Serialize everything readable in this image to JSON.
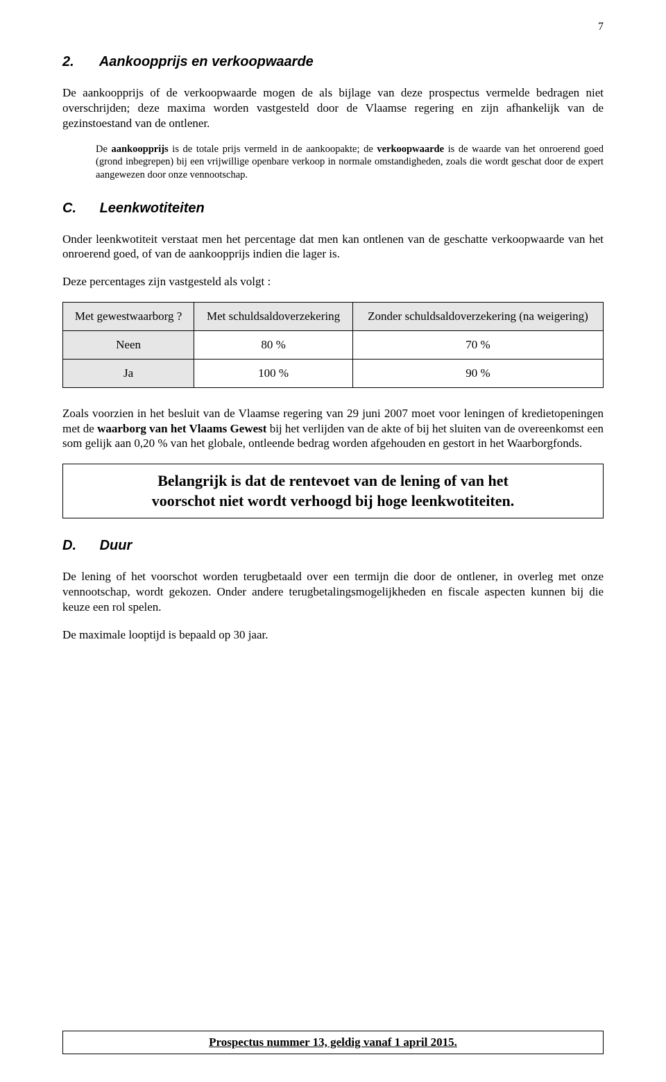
{
  "page_number": "7",
  "section2": {
    "num": "2.",
    "title": "Aankoopprijs en verkoopwaarde",
    "para1": "De aankoopprijs of de verkoopwaarde mogen de als bijlage van deze prospectus vermelde bedragen niet overschrijden; deze maxima worden vastgesteld door de Vlaamse regering en zijn afhankelijk van de gezinstoestand van de ontlener.",
    "note": "De aankoopprijs is de totale prijs vermeld in de aankoopakte; de verkoopwaarde is de waarde van het onroerend goed (grond inbegrepen) bij een vrijwillige openbare verkoop in normale omstandigheden, zoals die wordt geschat door de expert aangewezen door onze vennootschap."
  },
  "sectionC": {
    "letter": "C.",
    "title": "Leenkwotiteiten",
    "para1": "Onder leenkwotiteit verstaat men het percentage dat men kan ontlenen van de geschatte verkoopwaarde van het onroerend goed, of van de aankoopprijs indien die lager is.",
    "para2": "Deze percentages zijn vastgesteld als volgt :",
    "table": {
      "header": {
        "c0": "Met gewestwaarborg ?",
        "c1": "Met schuldsaldoverzekering",
        "c2": "Zonder schuldsaldoverzekering (na weigering)"
      },
      "rows": [
        {
          "label": "Neen",
          "v1": "80 %",
          "v2": "70 %"
        },
        {
          "label": "Ja",
          "v1": "100 %",
          "v2": "90 %"
        }
      ]
    },
    "para3": "Zoals voorzien in het besluit van de Vlaamse regering van 29 juni 2007 moet voor leningen of kredietopeningen met de waarborg van het Vlaams Gewest bij het verlijden van de akte of bij het sluiten van de overeenkomst een som gelijk aan 0,20 % van het globale, ontleende bedrag worden afgehouden en gestort in het Waarborgfonds.",
    "callout_line1": "Belangrijk is dat de rentevoet van de lening of van het",
    "callout_line2": "voorschot niet wordt verhoogd bij hoge leenkwotiteiten."
  },
  "sectionD": {
    "letter": "D.",
    "title": "Duur",
    "para1": "De lening of het voorschot worden terugbetaald over een termijn die door de ontlener, in overleg met onze vennootschap, wordt gekozen. Onder andere terugbetalingsmogelijkheden en fiscale aspecten kunnen bij die keuze een rol spelen.",
    "para2": "De maximale looptijd is bepaald op 30 jaar."
  },
  "footer": "Prospectus nummer 13, geldig vanaf 1 april 2015."
}
